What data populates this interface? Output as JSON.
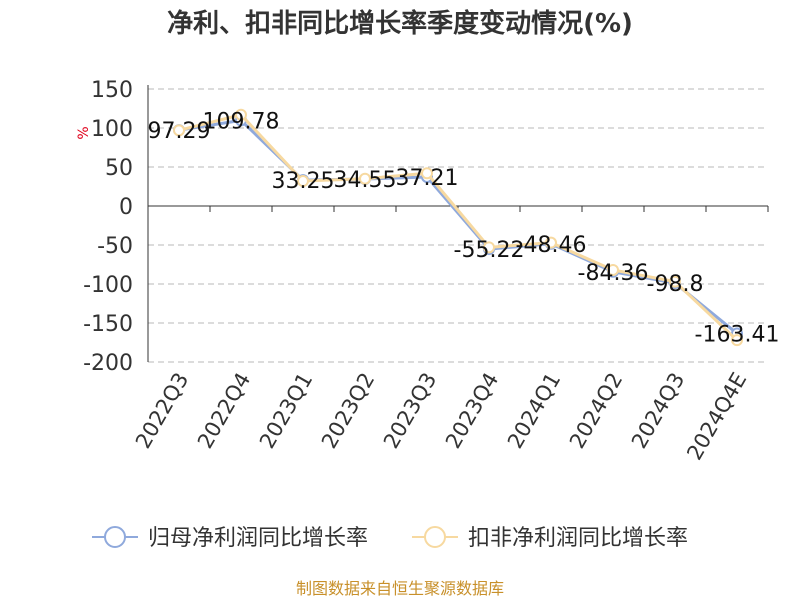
{
  "title": "净利、扣非同比增长率季度变动情况(%)",
  "unit_label": "%",
  "source": "制图数据来自恒生聚源数据库",
  "colors": {
    "series1": "#8fa9dc",
    "series2": "#f7d9a0",
    "source_text": "#c8902a",
    "unit": "#e0001b",
    "grid": "#b8b8b8"
  },
  "chart_data": {
    "type": "line",
    "title": "净利、扣非同比增长率季度变动情况(%)",
    "xlabel": "",
    "ylabel": "%",
    "ylim": [
      -200,
      150
    ],
    "yticks": [
      150,
      100,
      50,
      0,
      -50,
      -100,
      -150,
      -200
    ],
    "grid": true,
    "legend_position": "bottom",
    "categories": [
      "2022Q3",
      "2022Q4",
      "2023Q1",
      "2023Q2",
      "2023Q3",
      "2023Q4",
      "2024Q1",
      "2024Q2",
      "2024Q3",
      "2024Q4E"
    ],
    "series": [
      {
        "name": "归母净利润同比增长率",
        "values": [
          97.29,
          109.78,
          33.25,
          34.55,
          37.21,
          -55.22,
          -48.46,
          -84.36,
          -98.8,
          -163.41
        ]
      },
      {
        "name": "扣非净利润同比增长率",
        "values": [
          97.0,
          117.0,
          32.0,
          35.0,
          42.0,
          -53.0,
          -47.0,
          -82.0,
          -97.0,
          -172.0
        ]
      }
    ],
    "data_labels": [
      "97.29",
      "109.78",
      "33.25",
      "34.55",
      "37.21",
      "-55.22",
      "-48.46",
      "-84.36",
      "-98.8",
      "-163.41"
    ]
  }
}
